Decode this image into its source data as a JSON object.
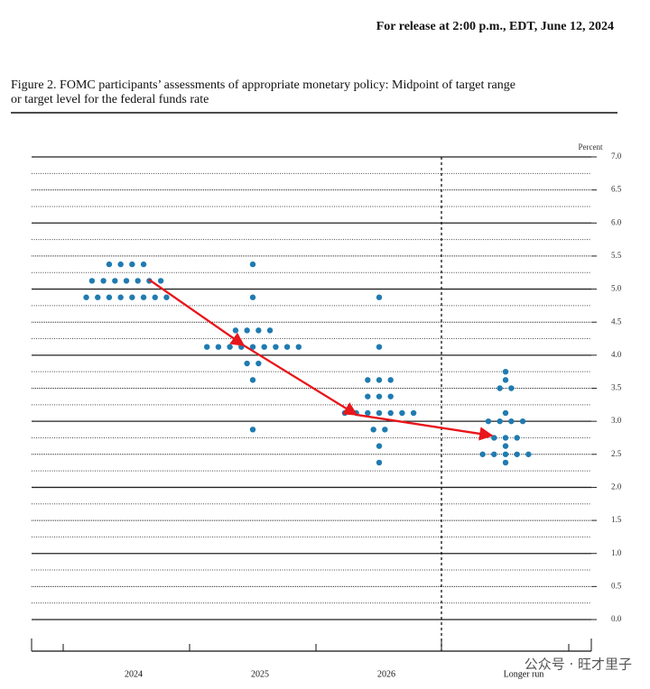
{
  "header": "For release at 2:00 p.m., EDT, June 12, 2024",
  "chart_data": {
    "type": "dot",
    "title_line1": "Figure 2.  FOMC participants’ assessments of appropriate monetary policy:  Midpoint of target range",
    "title_line2": "or target level for the federal funds rate",
    "y_unit_label": "Percent",
    "ylim": [
      0,
      7
    ],
    "yticks": [
      {
        "value": 0,
        "label": "0.0"
      },
      0.5,
      {
        "value": 1,
        "label": "1.0"
      },
      1.5,
      {
        "value": 2,
        "label": "2.0"
      },
      2.5,
      {
        "value": 3,
        "label": "3.0"
      },
      3.5,
      {
        "value": 4,
        "label": "4.0"
      },
      4.5,
      {
        "value": 5,
        "label": "5.0"
      },
      5.5,
      {
        "value": 6,
        "label": "6.0"
      },
      6.5,
      {
        "value": 7,
        "label": "7.0"
      }
    ],
    "minor_yticks": [
      0.25,
      0.75,
      1.25,
      1.75,
      2.25,
      2.75,
      3.25,
      3.75,
      4.25,
      4.75,
      5.25,
      5.75,
      6.25,
      6.75
    ],
    "color": "#1f7bb0",
    "categories": [
      "2024",
      "2025",
      "2026",
      "Longer run"
    ],
    "dots": [
      {
        "values": [
          5.375,
          5.125,
          4.875
        ],
        "counts": [
          4,
          7,
          8
        ]
      },
      {
        "values": [
          5.375,
          4.875,
          4.375,
          4.125,
          3.875,
          3.625,
          2.875
        ],
        "counts": [
          1,
          1,
          4,
          9,
          2,
          1,
          1
        ]
      },
      {
        "values": [
          4.875,
          4.125,
          3.625,
          3.375,
          3.125,
          2.875,
          2.625,
          2.375
        ],
        "counts": [
          1,
          1,
          3,
          3,
          7,
          2,
          1,
          1
        ]
      },
      {
        "values": [
          3.75,
          3.625,
          3.5,
          3.125,
          3.0,
          2.75,
          2.625,
          2.5,
          2.375
        ],
        "counts": [
          1,
          1,
          2,
          1,
          4,
          3,
          1,
          5,
          1
        ]
      }
    ]
  },
  "watermark": "公众号 · 旺才里子"
}
